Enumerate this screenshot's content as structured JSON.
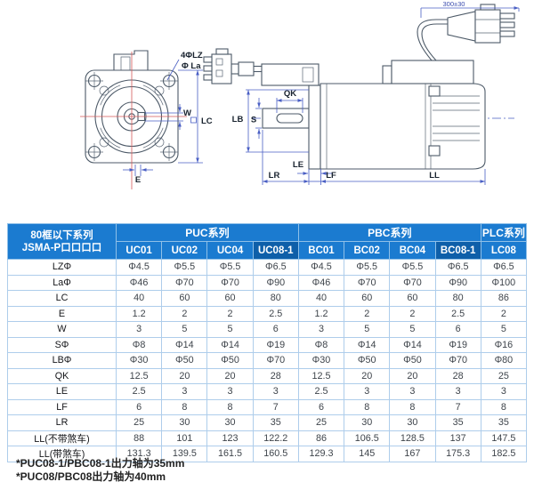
{
  "diagram": {
    "front": {
      "label_holes": "4ΦLZ",
      "label_pilot": "Φ La",
      "label_w": "W",
      "label_lc": "LC",
      "label_e": "E"
    },
    "side": {
      "label_qk": "QK",
      "label_lb": "LB",
      "label_s": "S",
      "label_le": "LE",
      "label_lr": "LR",
      "label_lf": "LF",
      "label_ll": "LL",
      "label_cable": "300±30"
    }
  },
  "table": {
    "corner": {
      "line1": "80框以下系列",
      "line2": "JSMA-P口口口口"
    },
    "groups": [
      {
        "label": "PUC系列",
        "span": 4
      },
      {
        "label": "PBC系列",
        "span": 4
      },
      {
        "label": "PLC系列",
        "span": 1
      }
    ],
    "columns": [
      {
        "label": "UC01",
        "highlight": false
      },
      {
        "label": "UC02",
        "highlight": false
      },
      {
        "label": "UC04",
        "highlight": false
      },
      {
        "label": "UC08-1",
        "highlight": true
      },
      {
        "label": "BC01",
        "highlight": false
      },
      {
        "label": "BC02",
        "highlight": false
      },
      {
        "label": "BC04",
        "highlight": false
      },
      {
        "label": "BC08-1",
        "highlight": true
      },
      {
        "label": "LC08",
        "highlight": false
      }
    ],
    "rows": [
      {
        "label": "LZΦ",
        "values": [
          "Φ4.5",
          "Φ5.5",
          "Φ5.5",
          "Φ6.5",
          "Φ4.5",
          "Φ5.5",
          "Φ5.5",
          "Φ6.5",
          "Φ6.5"
        ]
      },
      {
        "label": "LaΦ",
        "values": [
          "Φ46",
          "Φ70",
          "Φ70",
          "Φ90",
          "Φ46",
          "Φ70",
          "Φ70",
          "Φ90",
          "Φ100"
        ]
      },
      {
        "label": "LC",
        "values": [
          "40",
          "60",
          "60",
          "80",
          "40",
          "60",
          "60",
          "80",
          "86"
        ]
      },
      {
        "label": "E",
        "values": [
          "1.2",
          "2",
          "2",
          "2.5",
          "1.2",
          "2",
          "2",
          "2.5",
          "2"
        ]
      },
      {
        "label": "W",
        "values": [
          "3",
          "5",
          "5",
          "6",
          "3",
          "5",
          "5",
          "6",
          "5"
        ]
      },
      {
        "label": "SΦ",
        "values": [
          "Φ8",
          "Φ14",
          "Φ14",
          "Φ19",
          "Φ8",
          "Φ14",
          "Φ14",
          "Φ19",
          "Φ16"
        ]
      },
      {
        "label": "LBΦ",
        "values": [
          "Φ30",
          "Φ50",
          "Φ50",
          "Φ70",
          "Φ30",
          "Φ50",
          "Φ50",
          "Φ70",
          "Φ80"
        ]
      },
      {
        "label": "QK",
        "values": [
          "12.5",
          "20",
          "20",
          "28",
          "12.5",
          "20",
          "20",
          "28",
          "25"
        ]
      },
      {
        "label": "LE",
        "values": [
          "2.5",
          "3",
          "3",
          "3",
          "2.5",
          "3",
          "3",
          "3",
          "3"
        ]
      },
      {
        "label": "LF",
        "values": [
          "6",
          "8",
          "8",
          "7",
          "6",
          "8",
          "8",
          "7",
          "8"
        ]
      },
      {
        "label": "LR",
        "values": [
          "25",
          "30",
          "30",
          "35",
          "25",
          "30",
          "30",
          "35",
          "35"
        ]
      },
      {
        "label": "LL(不带煞车)",
        "values": [
          "88",
          "101",
          "123",
          "122.2",
          "86",
          "106.5",
          "128.5",
          "137",
          "147.5"
        ]
      },
      {
        "label": "LL(带煞车)",
        "values": [
          "131.3",
          "139.5",
          "161.5",
          "160.5",
          "129.3",
          "145",
          "167",
          "175.3",
          "182.5"
        ]
      }
    ]
  },
  "notes": [
    "*PUC08-1/PBC08-1出力轴为35mm",
    "*PUC08/PBC08出力轴为40mm"
  ],
  "colors": {
    "header_blue": "#1b7bd0",
    "header_highlight": "#0e5fa9",
    "cell_border": "#aecdeb",
    "group_border": "#3a76b8",
    "dimension_blue": "#4a5fc4",
    "centerline_red": "#d45858"
  }
}
